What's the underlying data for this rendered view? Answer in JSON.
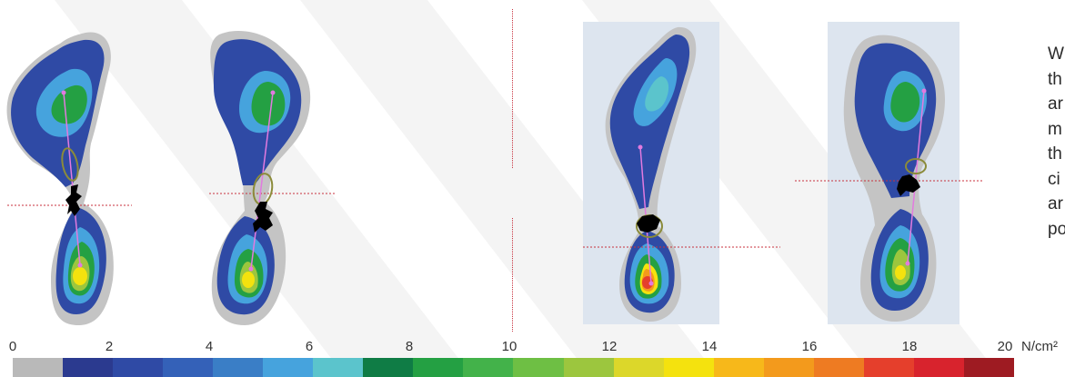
{
  "side_text_lines": [
    "W",
    "th",
    "ar",
    "m",
    "th",
    "ci",
    "ar",
    "po"
  ],
  "pressure_scale": {
    "ticks": [
      "0",
      "2",
      "4",
      "6",
      "8",
      "10",
      "12",
      "14",
      "16",
      "18",
      "20"
    ],
    "unit": "N/cm²",
    "colors": [
      "#b9b9b9",
      "#2b3a8f",
      "#2f4aa5",
      "#3461b8",
      "#3a7ec6",
      "#46a3dd",
      "#5bc4cc",
      "#0f7c45",
      "#24a043",
      "#43b24a",
      "#6ebf44",
      "#9cc63e",
      "#dcd72a",
      "#f4e20e",
      "#f7b81a",
      "#f39a1c",
      "#ee7b22",
      "#e53f2c",
      "#d8232d",
      "#9e1b22"
    ]
  },
  "colors": {
    "guide_line": "#c8323e",
    "axis_line": "#e27adf",
    "center_marker": "#000000",
    "ellipse": "#8b8b3a",
    "panel_background": "#dde5ef"
  }
}
